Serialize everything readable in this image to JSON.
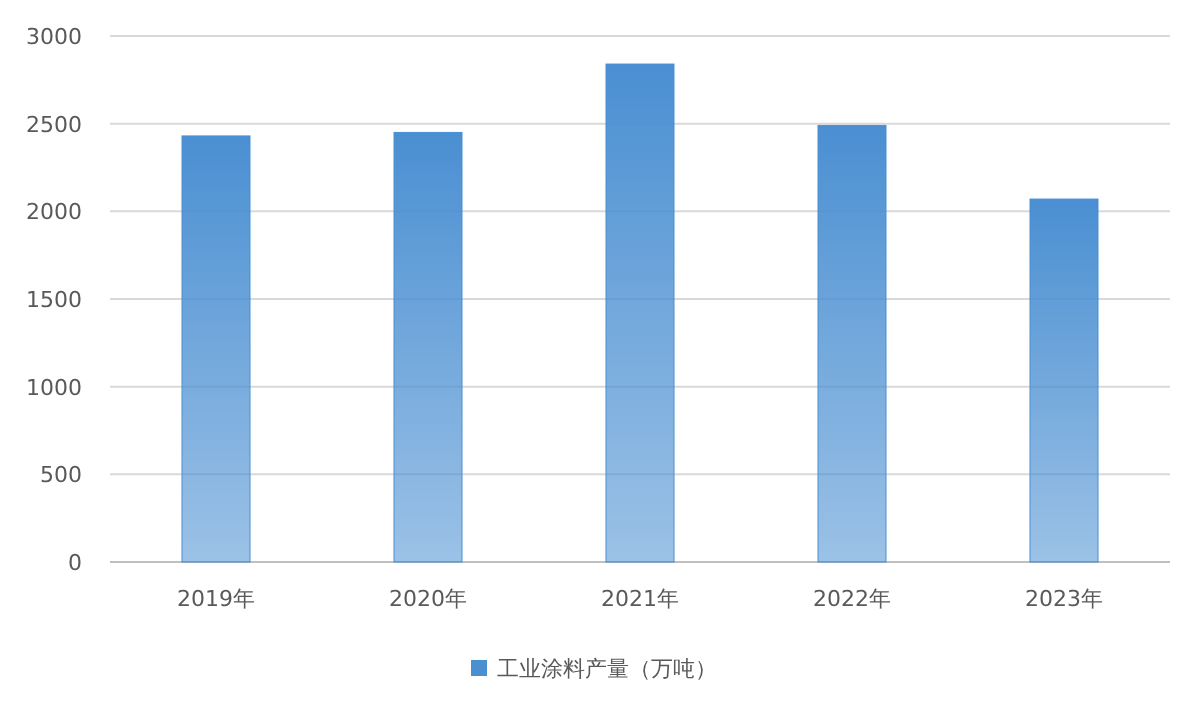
{
  "chart_data": {
    "type": "bar",
    "categories": [
      "2019年",
      "2020年",
      "2021年",
      "2022年",
      "2023年"
    ],
    "series": [
      {
        "name": "工业涂料产量（万吨）",
        "color": "#4a8fd2",
        "values": [
          2430,
          2450,
          2840,
          2490,
          2070
        ]
      }
    ],
    "ylim": [
      0,
      3000
    ],
    "yticks": [
      0,
      500,
      1000,
      1500,
      2000,
      2500,
      3000
    ],
    "grid": "y",
    "legend": "bottom"
  }
}
